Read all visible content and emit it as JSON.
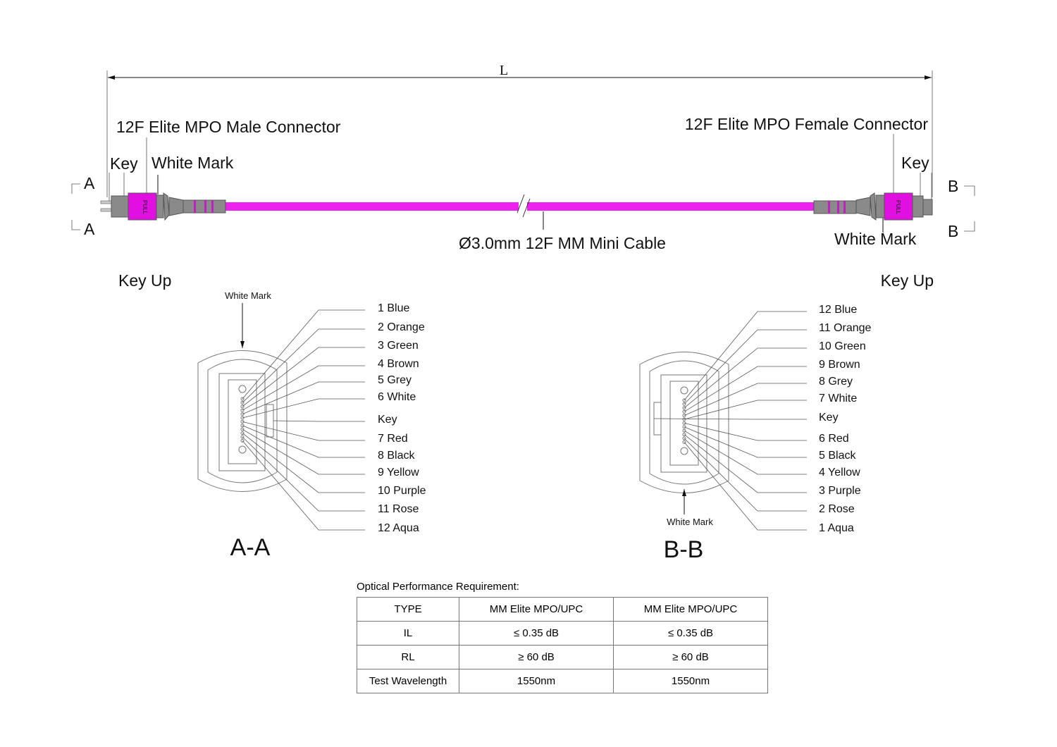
{
  "dimension_label": "L",
  "left_connector": {
    "title": "12F Elite MPO Male Connector",
    "key": "Key",
    "white_mark": "White Mark",
    "section": "A",
    "pull": "PULL"
  },
  "right_connector": {
    "title": "12F Elite MPO Female Connector",
    "key": "Key",
    "white_mark": "White Mark",
    "section": "B",
    "pull": "PULL"
  },
  "cable_label": "Ø3.0mm 12F MM Mini Cable",
  "colors": {
    "cable": "#ee22ee",
    "connector_body": "#8a8a8a",
    "housing": "#e010e0"
  },
  "view_a": {
    "orientation": "Key Up",
    "white_mark": "White Mark",
    "title": "A-A",
    "labels": [
      "1 Blue",
      "2 Orange",
      "3 Green",
      "4 Brown",
      "5 Grey",
      "6 White",
      "Key",
      "7 Red",
      "8 Black",
      "9 Yellow",
      "10 Purple",
      "11 Rose",
      "12 Aqua"
    ]
  },
  "view_b": {
    "orientation": "Key Up",
    "white_mark": "White Mark",
    "title": "B-B",
    "labels": [
      "12 Blue",
      "11 Orange",
      "10 Green",
      "9 Brown",
      "8 Grey",
      "7 White",
      "Key",
      "6 Red",
      "5 Black",
      "4 Yellow",
      "3 Purple",
      "2 Rose",
      "1 Aqua"
    ]
  },
  "performance": {
    "caption": "Optical Performance Requirement:",
    "rows": [
      [
        "TYPE",
        "MM Elite MPO/UPC",
        "MM Elite MPO/UPC"
      ],
      [
        "IL",
        "≤ 0.35 dB",
        "≤ 0.35 dB"
      ],
      [
        "RL",
        "≥ 60 dB",
        "≥ 60 dB"
      ],
      [
        "Test Wavelength",
        "1550nm",
        "1550nm"
      ]
    ]
  }
}
